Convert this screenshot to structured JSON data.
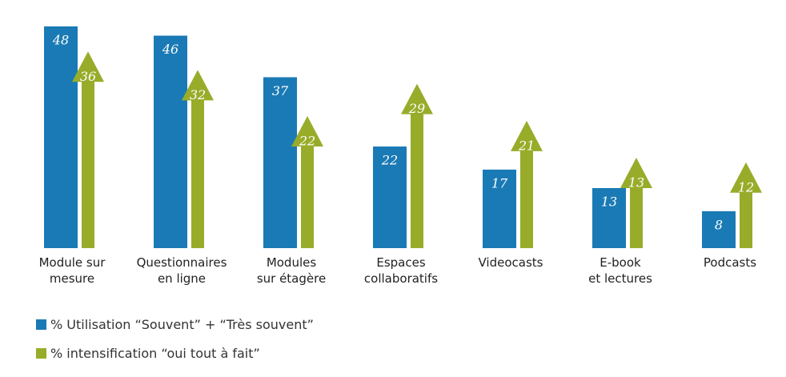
{
  "chart_data": {
    "type": "bar-arrow",
    "categories": [
      "Module sur\nmesure",
      "Questionnaires\nen ligne",
      "Modules\nsur étagère",
      "Espaces\ncollaboratifs",
      "Videocasts",
      "E-book\net lectures",
      "Podcasts"
    ],
    "series": [
      {
        "name": "% Utilisation “Souvent” + “Très souvent”",
        "color": "#1a7ab5",
        "values": [
          48,
          46,
          37,
          22,
          17,
          13,
          8
        ]
      },
      {
        "name": "% intensification “oui tout à fait”",
        "color": "#98ac2a",
        "values": [
          36,
          32,
          22,
          29,
          21,
          13,
          12
        ]
      }
    ]
  }
}
